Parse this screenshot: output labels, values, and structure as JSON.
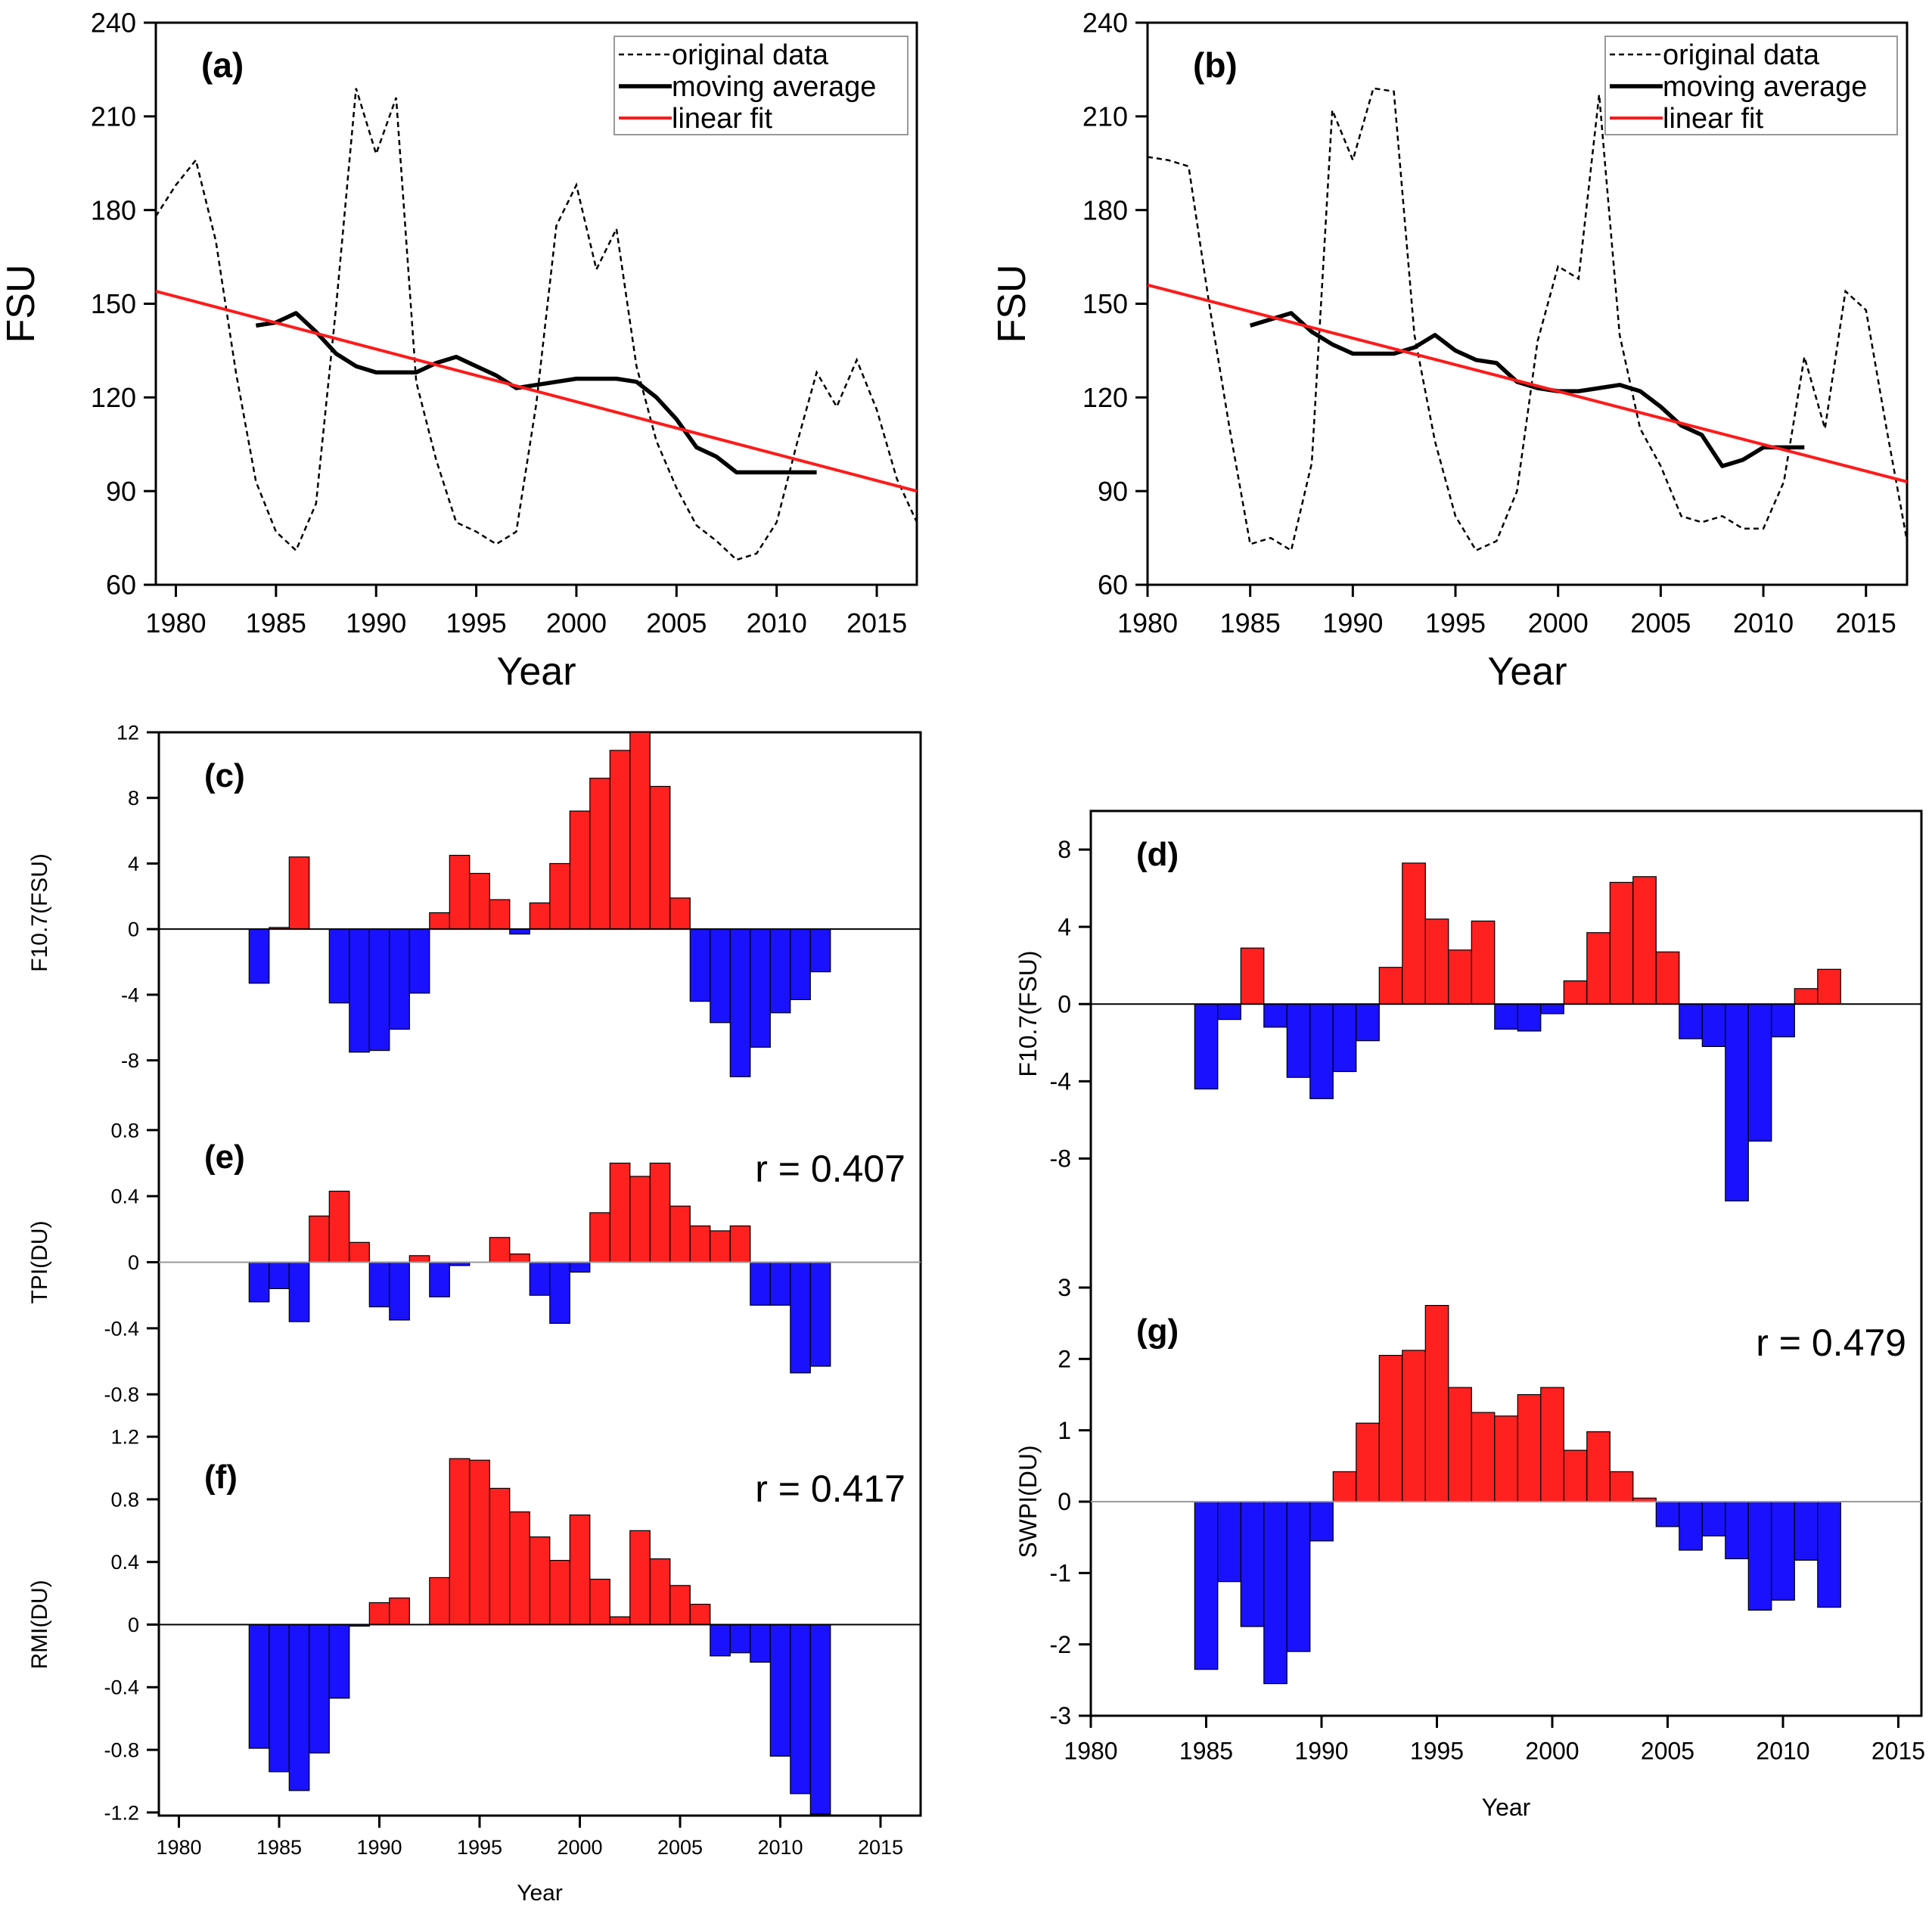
{
  "colors": {
    "positive": "#ff2020",
    "negative": "#1a12ff",
    "fit": "#ff1a1a",
    "line": "#000000"
  },
  "chart_data": [
    {
      "id": "a",
      "type": "line",
      "panel_label": "(a)",
      "ylabel": "FSU",
      "xlabel": "Year",
      "xlim": [
        1979,
        2017
      ],
      "ylim": [
        60,
        240
      ],
      "xticks": [
        1980,
        1985,
        1990,
        1995,
        2000,
        2005,
        2010,
        2015
      ],
      "yticks": [
        60,
        90,
        120,
        150,
        180,
        210,
        240
      ],
      "legend": [
        "original data",
        "moving average",
        "linear fit"
      ],
      "series": [
        {
          "name": "original data",
          "x": [
            1979,
            1980,
            1981,
            1982,
            1983,
            1984,
            1985,
            1986,
            1987,
            1988,
            1989,
            1990,
            1991,
            1992,
            1993,
            1994,
            1995,
            1996,
            1997,
            1998,
            1999,
            2000,
            2001,
            2002,
            2003,
            2004,
            2005,
            2006,
            2007,
            2008,
            2009,
            2010,
            2011,
            2012,
            2013,
            2014,
            2015,
            2016,
            2017
          ],
          "y": [
            178,
            188,
            196,
            170,
            128,
            93,
            77,
            71,
            86,
            149,
            219,
            198,
            216,
            125,
            100,
            80,
            77,
            73,
            77,
            118,
            175,
            188,
            161,
            174,
            130,
            106,
            91,
            79,
            74,
            68,
            70,
            80,
            105,
            128,
            117,
            132,
            116,
            94,
            80
          ]
        },
        {
          "name": "moving average",
          "x": [
            1984,
            1985,
            1986,
            1987,
            1988,
            1989,
            1990,
            1991,
            1992,
            1993,
            1994,
            1995,
            1996,
            1997,
            1998,
            1999,
            2000,
            2001,
            2002,
            2003,
            2004,
            2005,
            2006,
            2007,
            2008,
            2009,
            2010,
            2011,
            2012
          ],
          "y": [
            143,
            144,
            147,
            141,
            134,
            130,
            128,
            128,
            128,
            131,
            133,
            130,
            127,
            123,
            124,
            125,
            126,
            126,
            126,
            125,
            120,
            113,
            104,
            101,
            96,
            96,
            96,
            96,
            96
          ]
        },
        {
          "name": "linear fit",
          "x": [
            1979,
            2017
          ],
          "y": [
            154,
            90
          ]
        }
      ]
    },
    {
      "id": "b",
      "type": "line",
      "panel_label": "(b)",
      "ylabel": "FSU",
      "xlabel": "Year",
      "xlim": [
        1980,
        2017
      ],
      "ylim": [
        60,
        240
      ],
      "xticks": [
        1980,
        1985,
        1990,
        1995,
        2000,
        2005,
        2010,
        2015
      ],
      "yticks": [
        60,
        90,
        120,
        150,
        180,
        210,
        240
      ],
      "legend": [
        "original data",
        "moving average",
        "linear fit"
      ],
      "series": [
        {
          "name": "original data",
          "x": [
            1980,
            1981,
            1982,
            1983,
            1984,
            1985,
            1986,
            1987,
            1988,
            1989,
            1990,
            1991,
            1992,
            1993,
            1994,
            1995,
            1996,
            1997,
            1998,
            1999,
            2000,
            2001,
            2002,
            2003,
            2004,
            2005,
            2006,
            2007,
            2008,
            2009,
            2010,
            2011,
            2012,
            2013,
            2014,
            2015,
            2016,
            2017
          ],
          "y": [
            197,
            196,
            194,
            150,
            110,
            73,
            75,
            71,
            99,
            212,
            196,
            219,
            218,
            140,
            106,
            82,
            71,
            74,
            90,
            138,
            162,
            158,
            217,
            140,
            110,
            98,
            82,
            80,
            82,
            78,
            78,
            93,
            133,
            110,
            154,
            148,
            110,
            74
          ]
        },
        {
          "name": "moving average",
          "x": [
            1985,
            1986,
            1987,
            1988,
            1989,
            1990,
            1991,
            1992,
            1993,
            1994,
            1995,
            1996,
            1997,
            1998,
            1999,
            2000,
            2001,
            2002,
            2003,
            2004,
            2005,
            2006,
            2007,
            2008,
            2009,
            2010,
            2011,
            2012
          ],
          "y": [
            143,
            145,
            147,
            141,
            137,
            134,
            134,
            134,
            136,
            140,
            135,
            132,
            131,
            125,
            123,
            122,
            122,
            123,
            124,
            122,
            117,
            111,
            108,
            98,
            100,
            104,
            104,
            104
          ]
        },
        {
          "name": "linear fit",
          "x": [
            1980,
            2017
          ],
          "y": [
            156,
            93
          ]
        }
      ]
    },
    {
      "id": "c",
      "type": "bar",
      "panel_label": "(c)",
      "ylabel": "F10.7(FSU)",
      "xlabel": "",
      "xlim": [
        1979,
        2017
      ],
      "ylim": [
        -10,
        12
      ],
      "yticks": [
        -8,
        -4,
        0,
        4,
        8,
        12
      ],
      "ytick_labels": [
        "-8",
        "-4",
        "0",
        "4",
        "8",
        "12"
      ],
      "x": [
        1984,
        1985,
        1986,
        1987,
        1988,
        1989,
        1990,
        1991,
        1992,
        1993,
        1994,
        1995,
        1996,
        1997,
        1998,
        1999,
        2000,
        2001,
        2002,
        2003,
        2004,
        2005,
        2006,
        2007,
        2008,
        2009,
        2010,
        2011,
        2012
      ],
      "values": [
        -3.3,
        0.1,
        4.4,
        0,
        -4.5,
        -7.5,
        -7.4,
        -6.1,
        -3.9,
        1.0,
        4.5,
        3.4,
        1.8,
        -0.3,
        1.6,
        4.0,
        7.2,
        9.2,
        10.9,
        12.0,
        8.7,
        1.9,
        -4.4,
        -5.7,
        -9.0,
        -7.2,
        -5.1,
        -4.3,
        -2.6
      ]
    },
    {
      "id": "e",
      "type": "bar",
      "panel_label": "(e)",
      "ylabel": "TPI(DU)",
      "xlabel": "",
      "annotation": "r = 0.407",
      "xlim": [
        1979,
        2017
      ],
      "ylim": [
        -0.9,
        0.9
      ],
      "yticks": [
        -0.8,
        -0.4,
        0,
        0.4,
        0.8
      ],
      "ytick_labels": [
        "-0.8",
        "-0.4",
        "0",
        "0.4",
        "0.8"
      ],
      "x": [
        1984,
        1985,
        1986,
        1987,
        1988,
        1989,
        1990,
        1991,
        1992,
        1993,
        1994,
        1995,
        1996,
        1997,
        1998,
        1999,
        2000,
        2001,
        2002,
        2003,
        2004,
        2005,
        2006,
        2007,
        2008,
        2009,
        2010,
        2011,
        2012
      ],
      "values": [
        -0.24,
        -0.16,
        -0.36,
        0.28,
        0.43,
        0.12,
        -0.27,
        -0.35,
        0.04,
        -0.21,
        -0.02,
        0,
        0.15,
        0.05,
        -0.2,
        -0.37,
        -0.06,
        0.3,
        0.6,
        0.52,
        0.6,
        0.34,
        0.22,
        0.19,
        0.22,
        -0.26,
        -0.26,
        -0.67,
        -0.63
      ]
    },
    {
      "id": "f",
      "type": "bar",
      "panel_label": "(f)",
      "ylabel": "RMI(DU)",
      "xlabel": "Year",
      "annotation": "r = 0.417",
      "xlim": [
        1979,
        2017
      ],
      "ylim": [
        -1.22,
        1.22
      ],
      "xticks": [
        1980,
        1985,
        1990,
        1995,
        2000,
        2005,
        2010,
        2015
      ],
      "yticks": [
        -1.2,
        -0.8,
        -0.4,
        0,
        0.4,
        0.8,
        1.2
      ],
      "ytick_labels": [
        "-1.2",
        "-0.8",
        "-0.4",
        "0",
        "0.4",
        "0.8",
        "1.2"
      ],
      "x": [
        1984,
        1985,
        1986,
        1987,
        1988,
        1989,
        1990,
        1991,
        1992,
        1993,
        1994,
        1995,
        1996,
        1997,
        1998,
        1999,
        2000,
        2001,
        2002,
        2003,
        2004,
        2005,
        2006,
        2007,
        2008,
        2009,
        2010,
        2011,
        2012
      ],
      "values": [
        -0.79,
        -0.94,
        -1.06,
        -0.82,
        -0.47,
        -0.01,
        0.14,
        0.17,
        0,
        0.3,
        1.06,
        1.05,
        0.87,
        0.72,
        0.56,
        0.41,
        0.7,
        0.29,
        0.05,
        0.6,
        0.42,
        0.25,
        0.13,
        -0.2,
        -0.18,
        -0.24,
        -0.84,
        -1.08,
        -1.21
      ]
    },
    {
      "id": "d",
      "type": "bar",
      "panel_label": "(d)",
      "ylabel": "F10.7(FSU)",
      "xlabel": "",
      "xlim": [
        1980,
        2016
      ],
      "ylim": [
        -11,
        10
      ],
      "yticks": [
        -8,
        -4,
        0,
        4,
        8
      ],
      "ytick_labels": [
        "-8",
        "-4",
        "0",
        "4",
        "8"
      ],
      "x": [
        1985,
        1986,
        1987,
        1988,
        1989,
        1990,
        1991,
        1992,
        1993,
        1994,
        1995,
        1996,
        1997,
        1998,
        1999,
        2000,
        2001,
        2002,
        2003,
        2004,
        2005,
        2006,
        2007,
        2008,
        2009,
        2010,
        2011,
        2012
      ],
      "values": [
        -4.4,
        -0.8,
        2.9,
        -1.2,
        -3.8,
        -4.9,
        -3.5,
        -1.9,
        1.9,
        7.3,
        4.4,
        2.8,
        4.3,
        -1.3,
        -1.4,
        -0.5,
        1.2,
        3.7,
        6.3,
        6.6,
        2.7,
        -1.8,
        -2.2,
        -10.2,
        -7.1,
        -1.7,
        0.8,
        1.8
      ]
    },
    {
      "id": "g",
      "type": "bar",
      "panel_label": "(g)",
      "ylabel": "SWPI(DU)",
      "xlabel": "Year",
      "annotation": "r = 0.479",
      "xlim": [
        1980,
        2016
      ],
      "ylim": [
        -3,
        3
      ],
      "xticks": [
        1980,
        1985,
        1990,
        1995,
        2000,
        2005,
        2010,
        2015
      ],
      "yticks": [
        -3,
        -2,
        -1,
        0,
        1,
        2,
        3
      ],
      "ytick_labels": [
        "-3",
        "-2",
        "-1",
        "0",
        "1",
        "2",
        "3"
      ],
      "x": [
        1985,
        1986,
        1987,
        1988,
        1989,
        1990,
        1991,
        1992,
        1993,
        1994,
        1995,
        1996,
        1997,
        1998,
        1999,
        2000,
        2001,
        2002,
        2003,
        2004,
        2005,
        2006,
        2007,
        2008,
        2009,
        2010,
        2011,
        2012
      ],
      "values": [
        -2.35,
        -1.12,
        -1.75,
        -2.55,
        -2.1,
        -0.55,
        0.42,
        1.1,
        2.05,
        2.12,
        2.75,
        1.6,
        1.25,
        1.2,
        1.5,
        1.6,
        0.72,
        0.98,
        0.42,
        0.05,
        -0.35,
        -0.68,
        -0.48,
        -0.8,
        -1.52,
        -1.38,
        -0.82,
        -1.48
      ]
    }
  ]
}
